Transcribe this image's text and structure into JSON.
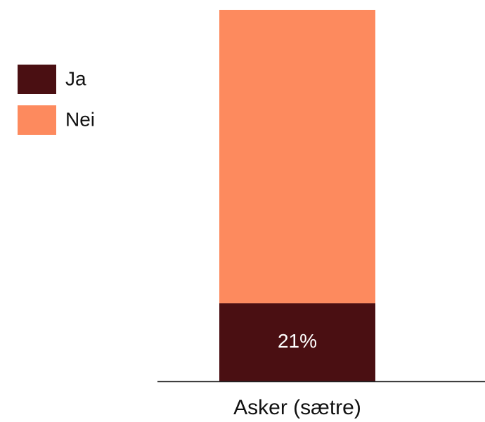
{
  "chart_data": {
    "type": "stacked-bar",
    "categories": [
      "Asker (sætre)"
    ],
    "series": [
      {
        "name": "Ja",
        "color": "#4a0f12",
        "values": [
          21
        ],
        "value_labels": [
          "21%"
        ]
      },
      {
        "name": "Nei",
        "color": "#fd8a5e",
        "values": [
          79
        ]
      }
    ],
    "legend": "top-left"
  }
}
